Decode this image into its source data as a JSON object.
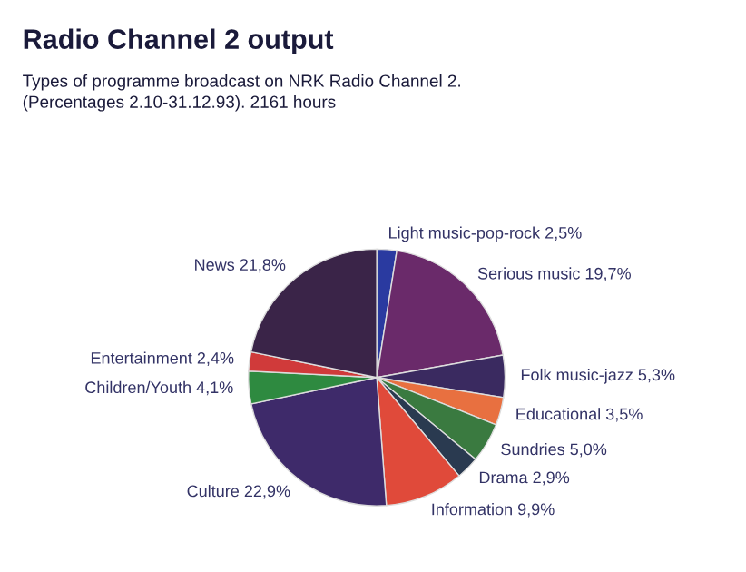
{
  "chart_data": {
    "type": "pie",
    "title": "Radio Channel 2 output",
    "subtitle": "Types of programme broadcast on NRK Radio Channel 2.\n(Percentages 2.10-31.12.93). 2161 hours",
    "categories": [
      "Light music-pop-rock",
      "Serious music",
      "Folk music-jazz",
      "Educational",
      "Sundries",
      "Drama",
      "Information",
      "Culture",
      "Children/Youth",
      "Entertainment",
      "News"
    ],
    "values": [
      2.5,
      19.7,
      5.3,
      3.5,
      5.0,
      2.9,
      9.9,
      22.9,
      4.1,
      2.4,
      21.8
    ],
    "value_labels": [
      "2,5%",
      "19,7%",
      "5,3%",
      "3,5%",
      "5,0%",
      "2,9%",
      "9,9%",
      "22,9%",
      "4,1%",
      "2,4%",
      "21,8%"
    ],
    "colors": [
      "#2a3aa0",
      "#6a2a6a",
      "#3a2a60",
      "#e87040",
      "#3a7a40",
      "#2a3a50",
      "#e04a3a",
      "#3e2a6a",
      "#2e8a40",
      "#d03a3a",
      "#3a2448"
    ]
  }
}
